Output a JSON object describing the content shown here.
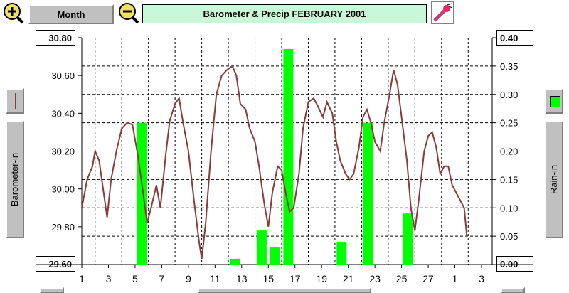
{
  "toolbar": {
    "zoom_in_icon": "zoom-in-icon",
    "zoom_out_icon": "zoom-out-icon",
    "period_label": "Month",
    "title": "Barometer & Precip  FEBRUARY 2001",
    "tool_icon": "paint-tool-icon"
  },
  "left_axis": {
    "label": "Barometer-in",
    "top_value": "30.80",
    "bottom_value": "29.60",
    "series_color": "#8b3a3a"
  },
  "right_axis": {
    "label": "Rain-in",
    "top_value": "0.40",
    "bottom_value": "0.00",
    "series_color": "#00ff00"
  },
  "chart_data": {
    "type": "line",
    "title": "Barometer & Precip  FEBRUARY 2001",
    "xlabel": "",
    "x_ticks": [
      "1",
      "3",
      "5",
      "7",
      "9",
      "11",
      "13",
      "15",
      "17",
      "19",
      "21",
      "23",
      "25",
      "27",
      "1",
      "3"
    ],
    "barometer": {
      "name": "Barometer-in",
      "color": "#8b3a3a",
      "ylim": [
        29.6,
        30.8
      ],
      "yticks": [
        "30.80",
        "30.60",
        "30.40",
        "30.20",
        "30.00",
        "29.80",
        "29.60"
      ],
      "points": [
        [
          1.0,
          29.9
        ],
        [
          1.4,
          30.05
        ],
        [
          1.8,
          30.12
        ],
        [
          2.0,
          30.2
        ],
        [
          2.3,
          30.15
        ],
        [
          2.6,
          30.0
        ],
        [
          2.9,
          29.85
        ],
        [
          3.2,
          30.05
        ],
        [
          3.6,
          30.2
        ],
        [
          4.0,
          30.32
        ],
        [
          4.4,
          30.35
        ],
        [
          4.8,
          30.34
        ],
        [
          5.2,
          30.18
        ],
        [
          5.6,
          29.98
        ],
        [
          5.9,
          29.82
        ],
        [
          6.2,
          29.9
        ],
        [
          6.6,
          30.02
        ],
        [
          6.9,
          29.9
        ],
        [
          7.3,
          30.18
        ],
        [
          7.6,
          30.36
        ],
        [
          8.0,
          30.45
        ],
        [
          8.3,
          30.48
        ],
        [
          8.6,
          30.35
        ],
        [
          9.0,
          30.2
        ],
        [
          9.4,
          29.95
        ],
        [
          9.8,
          29.72
        ],
        [
          10.0,
          29.63
        ],
        [
          10.3,
          29.82
        ],
        [
          10.7,
          30.2
        ],
        [
          11.1,
          30.5
        ],
        [
          11.5,
          30.6
        ],
        [
          11.9,
          30.63
        ],
        [
          12.3,
          30.65
        ],
        [
          12.6,
          30.6
        ],
        [
          12.9,
          30.45
        ],
        [
          13.3,
          30.42
        ],
        [
          13.6,
          30.32
        ],
        [
          14.0,
          30.25
        ],
        [
          14.3,
          30.12
        ],
        [
          14.7,
          29.92
        ],
        [
          15.0,
          29.8
        ],
        [
          15.3,
          29.98
        ],
        [
          15.7,
          30.12
        ],
        [
          16.0,
          30.1
        ],
        [
          16.3,
          29.98
        ],
        [
          16.6,
          29.88
        ],
        [
          16.9,
          29.9
        ],
        [
          17.3,
          30.08
        ],
        [
          17.6,
          30.32
        ],
        [
          18.0,
          30.46
        ],
        [
          18.4,
          30.48
        ],
        [
          18.7,
          30.44
        ],
        [
          19.1,
          30.38
        ],
        [
          19.4,
          30.46
        ],
        [
          19.8,
          30.4
        ],
        [
          20.1,
          30.25
        ],
        [
          20.4,
          30.15
        ],
        [
          20.8,
          30.08
        ],
        [
          21.1,
          30.05
        ],
        [
          21.4,
          30.08
        ],
        [
          21.8,
          30.22
        ],
        [
          22.1,
          30.38
        ],
        [
          22.4,
          30.42
        ],
        [
          22.7,
          30.35
        ],
        [
          23.0,
          30.25
        ],
        [
          23.4,
          30.2
        ],
        [
          23.7,
          30.35
        ],
        [
          24.1,
          30.5
        ],
        [
          24.4,
          30.63
        ],
        [
          24.7,
          30.55
        ],
        [
          25.0,
          30.38
        ],
        [
          25.4,
          30.15
        ],
        [
          25.7,
          29.9
        ],
        [
          26.0,
          29.78
        ],
        [
          26.3,
          29.95
        ],
        [
          26.7,
          30.2
        ],
        [
          27.0,
          30.28
        ],
        [
          27.3,
          30.3
        ],
        [
          27.6,
          30.22
        ],
        [
          27.9,
          30.08
        ],
        [
          28.2,
          30.12
        ],
        [
          28.5,
          30.12
        ],
        [
          28.8,
          30.02
        ],
        [
          29.1,
          29.98
        ],
        [
          29.4,
          29.94
        ],
        [
          29.7,
          29.9
        ],
        [
          29.9,
          29.75
        ]
      ]
    },
    "rain": {
      "name": "Rain-in",
      "color": "#00ff00",
      "ylim": [
        0,
        0.4
      ],
      "yticks": [
        "0.40",
        "0.35",
        "0.30",
        "0.25",
        "0.20",
        "0.15",
        "0.10",
        "0.05",
        "0.00"
      ],
      "bars": [
        {
          "day": 5.5,
          "value": 0.25
        },
        {
          "day": 12.5,
          "value": 0.01
        },
        {
          "day": 14.5,
          "value": 0.06
        },
        {
          "day": 15.5,
          "value": 0.03
        },
        {
          "day": 16.5,
          "value": 0.38
        },
        {
          "day": 20.5,
          "value": 0.04
        },
        {
          "day": 22.5,
          "value": 0.25
        },
        {
          "day": 25.5,
          "value": 0.09
        }
      ]
    }
  }
}
